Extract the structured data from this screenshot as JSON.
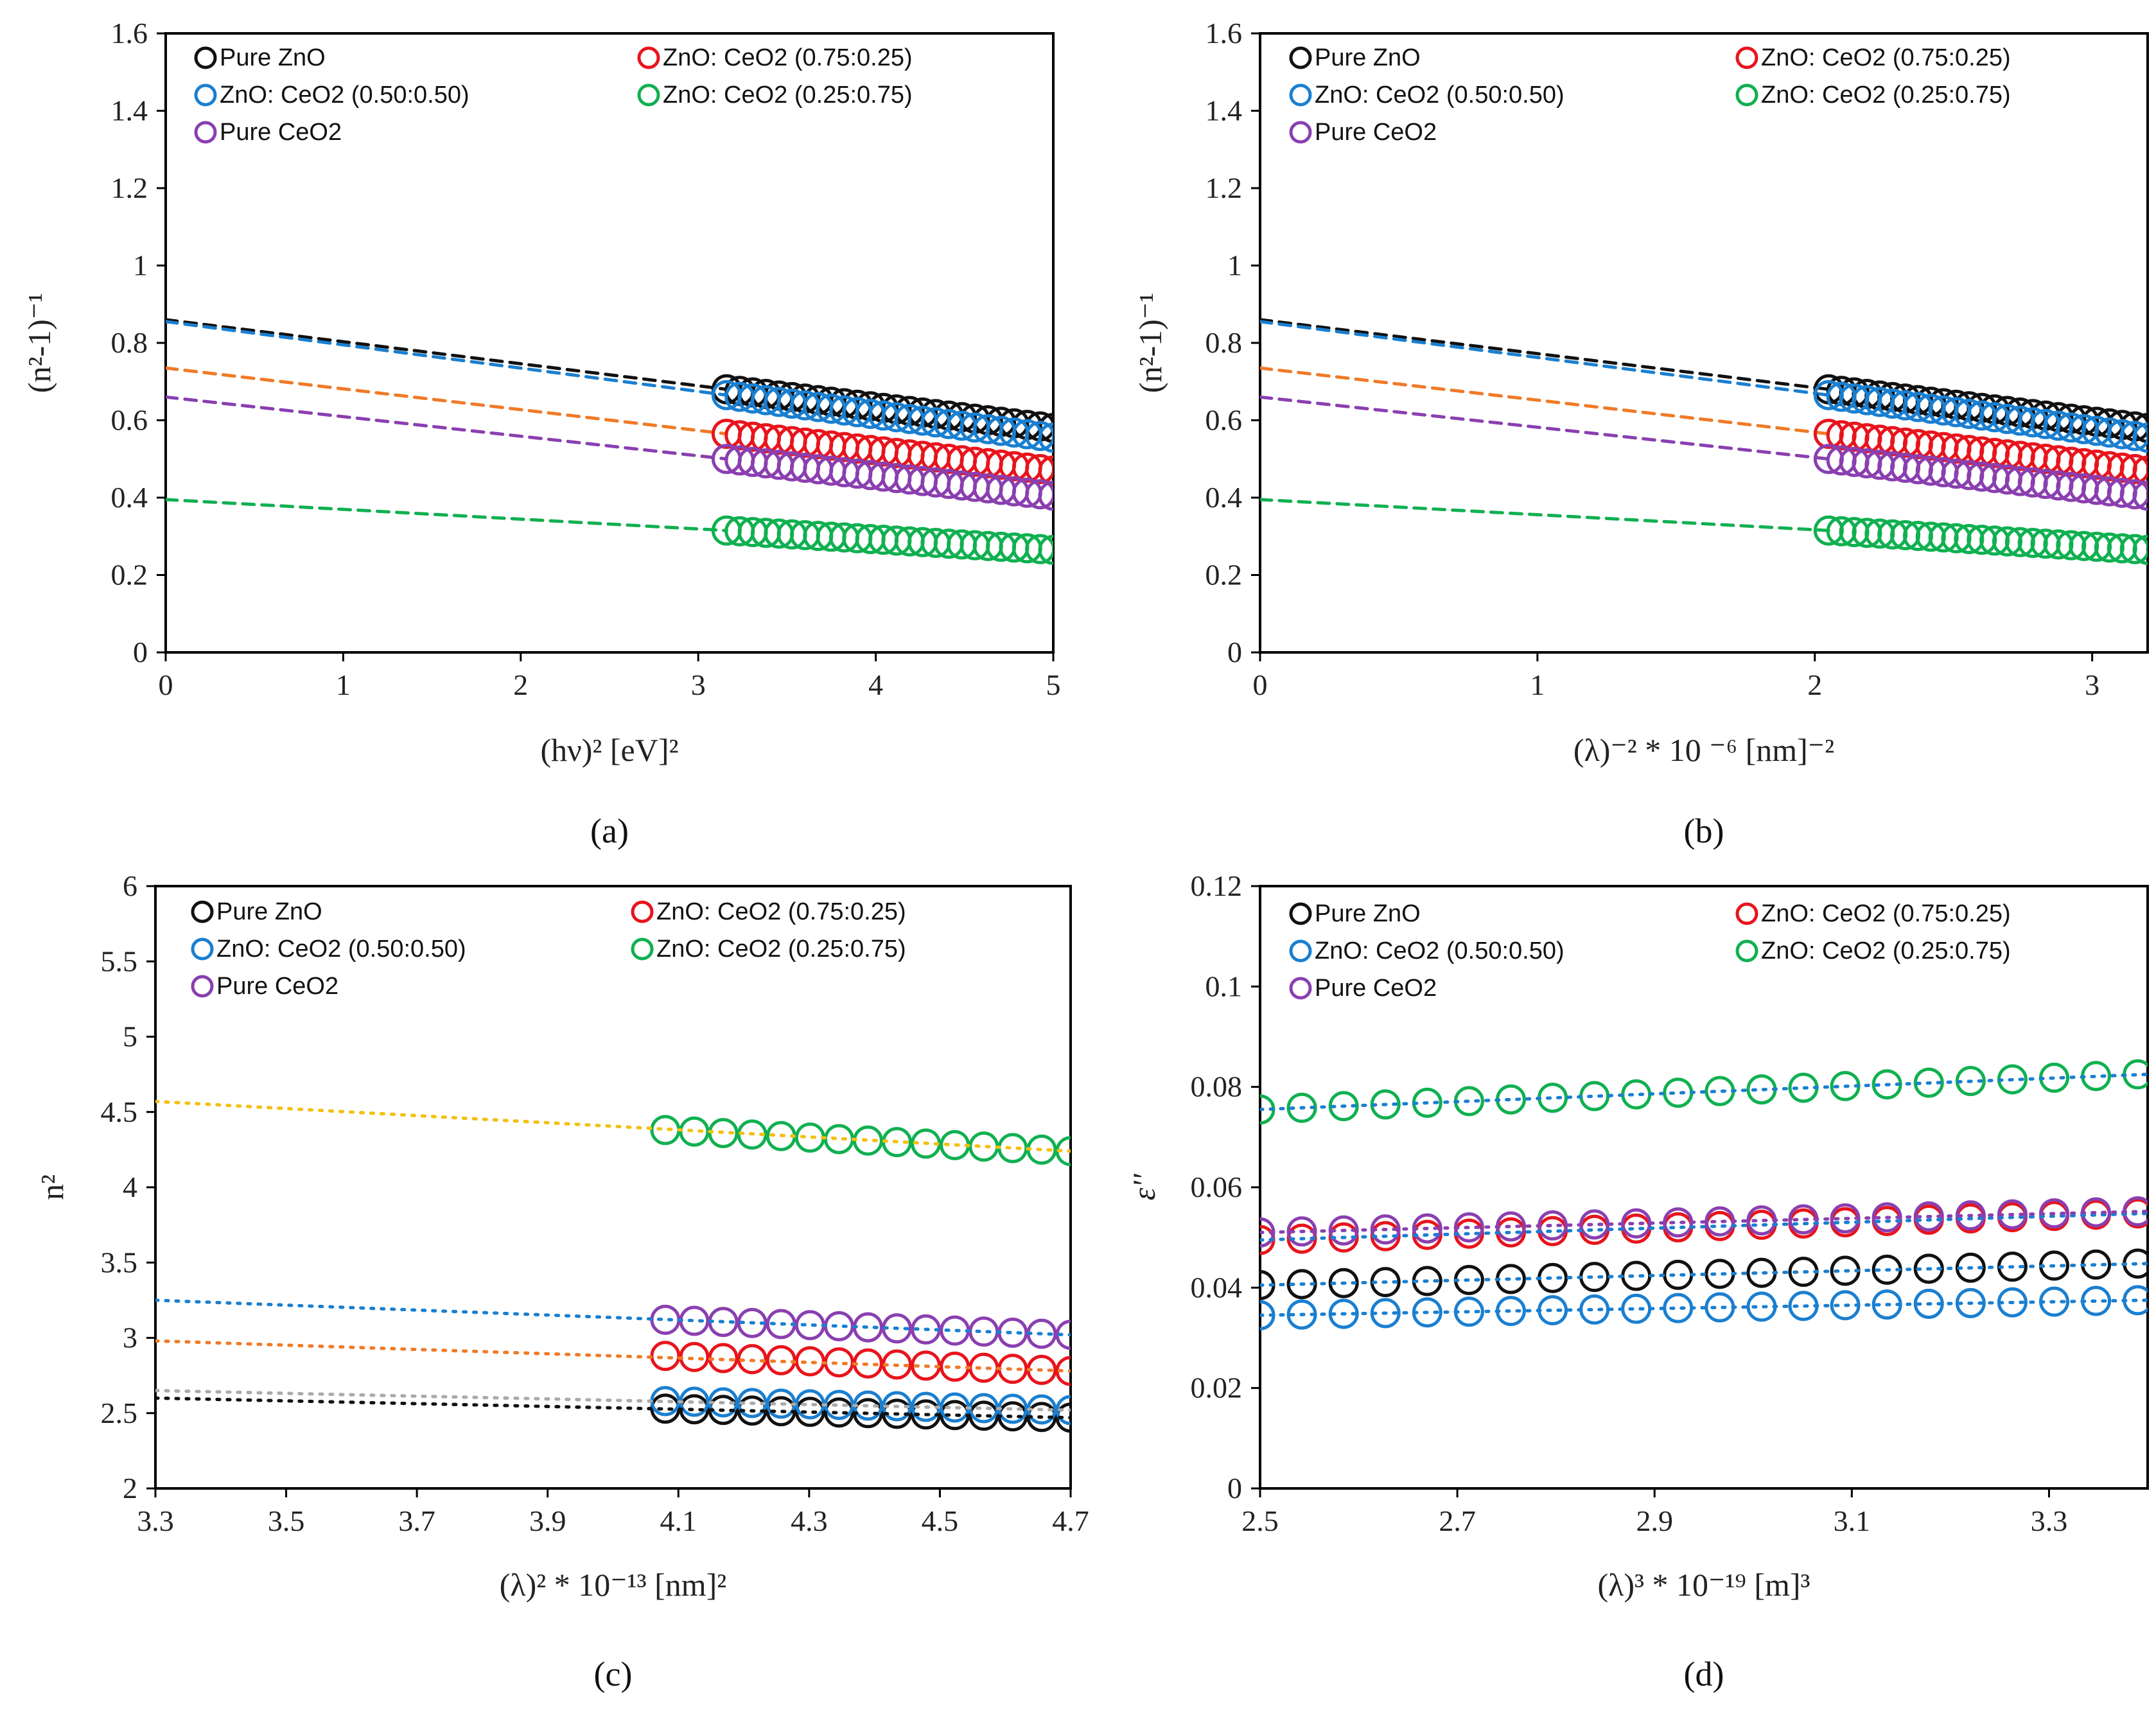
{
  "chart_data": [
    {
      "type": "scatter",
      "panel": "a",
      "caption": "(a)",
      "xlabel": "(hν)² [eV]²",
      "ylabel": "(n²-1)⁻¹",
      "xlim": [
        0,
        5
      ],
      "ylim": [
        0,
        1.6
      ],
      "xticks": [
        0,
        1,
        2,
        3,
        4,
        5
      ],
      "xtick_labels": [
        "0",
        "1",
        "2",
        "3",
        "4",
        "5"
      ],
      "yticks": [
        0,
        0.2,
        0.4,
        0.6,
        0.8,
        1,
        1.2,
        1.4,
        1.6
      ],
      "ytick_labels": [
        "0",
        "0.2",
        "0.4",
        "0.6",
        "0.8",
        "1",
        "1.2",
        "1.4",
        "1.6"
      ],
      "grid": false,
      "legend_position": "top",
      "series": [
        {
          "name": "Pure ZnO",
          "color": "#111111",
          "x_range": [
            3.16,
            5.0
          ],
          "y_range": [
            0.68,
            0.58
          ],
          "n_points": 26,
          "fit": {
            "x0": 0,
            "x1": 3.16,
            "y0": 0.86,
            "y1": 0.68,
            "color": "#111111",
            "style": "dashed"
          }
        },
        {
          "name": "ZnO: CeO2 (0.75:0.25)",
          "color": "#e8141c",
          "x_range": [
            3.16,
            5.0
          ],
          "y_range": [
            0.565,
            0.47
          ],
          "n_points": 26,
          "fit": {
            "x0": 0,
            "x1": 3.16,
            "y0": 0.735,
            "y1": 0.565,
            "color": "#f07a28",
            "style": "dashed"
          }
        },
        {
          "name": "ZnO: CeO2 (0.50:0.50)",
          "color": "#1a7fd0",
          "x_range": [
            3.16,
            5.0
          ],
          "y_range": [
            0.665,
            0.555
          ],
          "n_points": 26,
          "fit": {
            "x0": 0,
            "x1": 3.16,
            "y0": 0.855,
            "y1": 0.665,
            "color": "#1a7fd0",
            "style": "dashed"
          }
        },
        {
          "name": "ZnO: CeO2 (0.25:0.75)",
          "color": "#10b050",
          "x_range": [
            3.16,
            5.0
          ],
          "y_range": [
            0.315,
            0.265
          ],
          "n_points": 26,
          "fit": {
            "x0": 0,
            "x1": 3.16,
            "y0": 0.395,
            "y1": 0.315,
            "color": "#10b050",
            "style": "dashed"
          }
        },
        {
          "name": "Pure CeO2",
          "color": "#8a3fb0",
          "x_range": [
            3.16,
            5.0
          ],
          "y_range": [
            0.5,
            0.405
          ],
          "n_points": 26,
          "fit": {
            "x0": 0,
            "x1": 3.16,
            "y0": 0.66,
            "y1": 0.5,
            "color": "#8a3fb0",
            "style": "dashed"
          }
        }
      ]
    },
    {
      "type": "scatter",
      "panel": "b",
      "caption": "(b)",
      "xlabel": "(λ)⁻² * 10 ⁻⁶ [nm]⁻²",
      "ylabel": "(n²-1)⁻¹",
      "xlim": [
        0,
        3.2
      ],
      "ylim": [
        0,
        1.6
      ],
      "xticks": [
        0,
        1,
        2,
        3
      ],
      "xtick_labels": [
        "0",
        "1",
        "2",
        "3"
      ],
      "yticks": [
        0,
        0.2,
        0.4,
        0.6,
        0.8,
        1,
        1.2,
        1.4,
        1.6
      ],
      "ytick_labels": [
        "0",
        "0.2",
        "0.4",
        "0.6",
        "0.8",
        "1",
        "1.2",
        "1.4",
        "1.6"
      ],
      "grid": false,
      "legend_position": "top",
      "series": [
        {
          "name": "Pure ZnO",
          "color": "#111111",
          "x_range": [
            2.05,
            3.2
          ],
          "y_range": [
            0.68,
            0.58
          ],
          "n_points": 26,
          "fit": {
            "x0": 0,
            "x1": 2.05,
            "y0": 0.86,
            "y1": 0.68,
            "color": "#111111",
            "style": "dashed"
          }
        },
        {
          "name": "ZnO: CeO2 (0.75:0.25)",
          "color": "#e8141c",
          "x_range": [
            2.05,
            3.2
          ],
          "y_range": [
            0.565,
            0.47
          ],
          "n_points": 26,
          "fit": {
            "x0": 0,
            "x1": 2.05,
            "y0": 0.735,
            "y1": 0.565,
            "color": "#f07a28",
            "style": "dashed"
          }
        },
        {
          "name": "ZnO: CeO2 (0.50:0.50)",
          "color": "#1a7fd0",
          "x_range": [
            2.05,
            3.2
          ],
          "y_range": [
            0.665,
            0.555
          ],
          "n_points": 26,
          "fit": {
            "x0": 0,
            "x1": 2.05,
            "y0": 0.855,
            "y1": 0.665,
            "color": "#1a7fd0",
            "style": "dashed"
          }
        },
        {
          "name": "ZnO: CeO2 (0.25:0.75)",
          "color": "#10b050",
          "x_range": [
            2.05,
            3.2
          ],
          "y_range": [
            0.315,
            0.265
          ],
          "n_points": 26,
          "fit": {
            "x0": 0,
            "x1": 2.05,
            "y0": 0.395,
            "y1": 0.315,
            "color": "#10b050",
            "style": "dashed"
          }
        },
        {
          "name": "Pure CeO2",
          "color": "#8a3fb0",
          "x_range": [
            2.05,
            3.2
          ],
          "y_range": [
            0.5,
            0.405
          ],
          "n_points": 26,
          "fit": {
            "x0": 0,
            "x1": 2.05,
            "y0": 0.66,
            "y1": 0.5,
            "color": "#8a3fb0",
            "style": "dashed"
          }
        }
      ]
    },
    {
      "type": "scatter",
      "panel": "c",
      "caption": "(c)",
      "xlabel": "(λ)² * 10⁻¹³ [nm]²",
      "ylabel": "n²",
      "xlim": [
        3.3,
        4.7
      ],
      "ylim": [
        2,
        6
      ],
      "xticks": [
        3.3,
        3.5,
        3.7,
        3.9,
        4.1,
        4.3,
        4.5,
        4.7
      ],
      "xtick_labels": [
        "3.3",
        "3.5",
        "3.7",
        "3.9",
        "4.1",
        "4.3",
        "4.5",
        "4.7"
      ],
      "yticks": [
        2,
        2.5,
        3,
        3.5,
        4,
        4.5,
        5,
        5.5,
        6
      ],
      "ytick_labels": [
        "2",
        "2.5",
        "3",
        "3.5",
        "4",
        "4.5",
        "5",
        "5.5",
        "6"
      ],
      "grid": false,
      "legend_position": "top",
      "series": [
        {
          "name": "Pure ZnO",
          "color": "#111111",
          "x_range": [
            4.08,
            4.7
          ],
          "y_range": [
            2.53,
            2.47
          ],
          "n_points": 15,
          "fit": {
            "x0": 3.3,
            "x1": 4.7,
            "y0": 2.6,
            "y1": 2.47,
            "color": "#111111",
            "style": "dotted"
          }
        },
        {
          "name": "ZnO: CeO2 (0.75:0.25)",
          "color": "#e8141c",
          "x_range": [
            4.08,
            4.7
          ],
          "y_range": [
            2.88,
            2.78
          ],
          "n_points": 15,
          "fit": {
            "x0": 3.3,
            "x1": 4.7,
            "y0": 2.98,
            "y1": 2.78,
            "color": "#f07a28",
            "style": "dotted"
          }
        },
        {
          "name": "ZnO: CeO2 (0.50:0.50)",
          "color": "#1a7fd0",
          "x_range": [
            4.08,
            4.7
          ],
          "y_range": [
            2.58,
            2.52
          ],
          "n_points": 15,
          "fit": {
            "x0": 3.3,
            "x1": 4.7,
            "y0": 2.65,
            "y1": 2.52,
            "color": "#aaaaaa",
            "style": "dotted"
          }
        },
        {
          "name": "ZnO: CeO2 (0.25:0.75)",
          "color": "#10b050",
          "x_range": [
            4.08,
            4.7
          ],
          "y_range": [
            4.38,
            4.24
          ],
          "n_points": 15,
          "fit": {
            "x0": 3.3,
            "x1": 4.7,
            "y0": 4.57,
            "y1": 4.24,
            "color": "#f2c012",
            "style": "dotted"
          }
        },
        {
          "name": "Pure CeO2",
          "color": "#8a3fb0",
          "x_range": [
            4.08,
            4.7
          ],
          "y_range": [
            3.12,
            3.02
          ],
          "n_points": 15,
          "fit": {
            "x0": 3.3,
            "x1": 4.7,
            "y0": 3.25,
            "y1": 3.02,
            "color": "#1a7fd0",
            "style": "dotted"
          }
        }
      ]
    },
    {
      "type": "scatter",
      "panel": "d",
      "caption": "(d)",
      "xlabel": "(λ)³ * 10⁻¹⁹ [m]³",
      "ylabel": "ε''",
      "xlim": [
        2.5,
        3.4
      ],
      "ylim": [
        0,
        0.12
      ],
      "xticks": [
        2.5,
        2.7,
        2.9,
        3.1,
        3.3
      ],
      "xtick_labels": [
        "2.5",
        "2.7",
        "2.9",
        "3.1",
        "3.3"
      ],
      "yticks": [
        0,
        0.02,
        0.04,
        0.06,
        0.08,
        0.1,
        0.12
      ],
      "ytick_labels": [
        "0",
        "0.02",
        "0.04",
        "0.06",
        "0.08",
        "0.1",
        "0.12"
      ],
      "grid": false,
      "legend_position": "top",
      "series": [
        {
          "name": "Pure ZnO",
          "color": "#111111",
          "x_range": [
            2.5,
            3.39
          ],
          "y_range": [
            0.0405,
            0.0448
          ],
          "n_points": 22,
          "fit": {
            "x0": 2.5,
            "x1": 3.4,
            "y0": 0.0405,
            "y1": 0.0448,
            "color": "#1a7fd0",
            "style": "dotted"
          }
        },
        {
          "name": "ZnO: CeO2 (0.75:0.25)",
          "color": "#e8141c",
          "x_range": [
            2.5,
            3.39
          ],
          "y_range": [
            0.0495,
            0.0548
          ],
          "n_points": 22,
          "fit": {
            "x0": 2.5,
            "x1": 3.4,
            "y0": 0.0495,
            "y1": 0.0548,
            "color": "#1a7fd0",
            "style": "dotted"
          }
        },
        {
          "name": "ZnO: CeO2 (0.50:0.50)",
          "color": "#1a7fd0",
          "x_range": [
            2.5,
            3.39
          ],
          "y_range": [
            0.0345,
            0.0375
          ],
          "n_points": 22,
          "fit": {
            "x0": 2.5,
            "x1": 3.4,
            "y0": 0.0345,
            "y1": 0.0375,
            "color": "#1a7fd0",
            "style": "dotted"
          }
        },
        {
          "name": "ZnO: CeO2 (0.25:0.75)",
          "color": "#10b050",
          "x_range": [
            2.5,
            3.39
          ],
          "y_range": [
            0.0755,
            0.0825
          ],
          "n_points": 22,
          "fit": {
            "x0": 2.5,
            "x1": 3.4,
            "y0": 0.0755,
            "y1": 0.0825,
            "color": "#1a7fd0",
            "style": "dotted"
          }
        },
        {
          "name": "Pure CeO2",
          "color": "#8a3fb0",
          "x_range": [
            2.5,
            3.39
          ],
          "y_range": [
            0.051,
            0.0552
          ],
          "n_points": 22,
          "fit": {
            "x0": 2.5,
            "x1": 3.4,
            "y0": 0.051,
            "y1": 0.0552,
            "color": "#8a3fb0",
            "style": "dotted"
          }
        }
      ]
    }
  ]
}
